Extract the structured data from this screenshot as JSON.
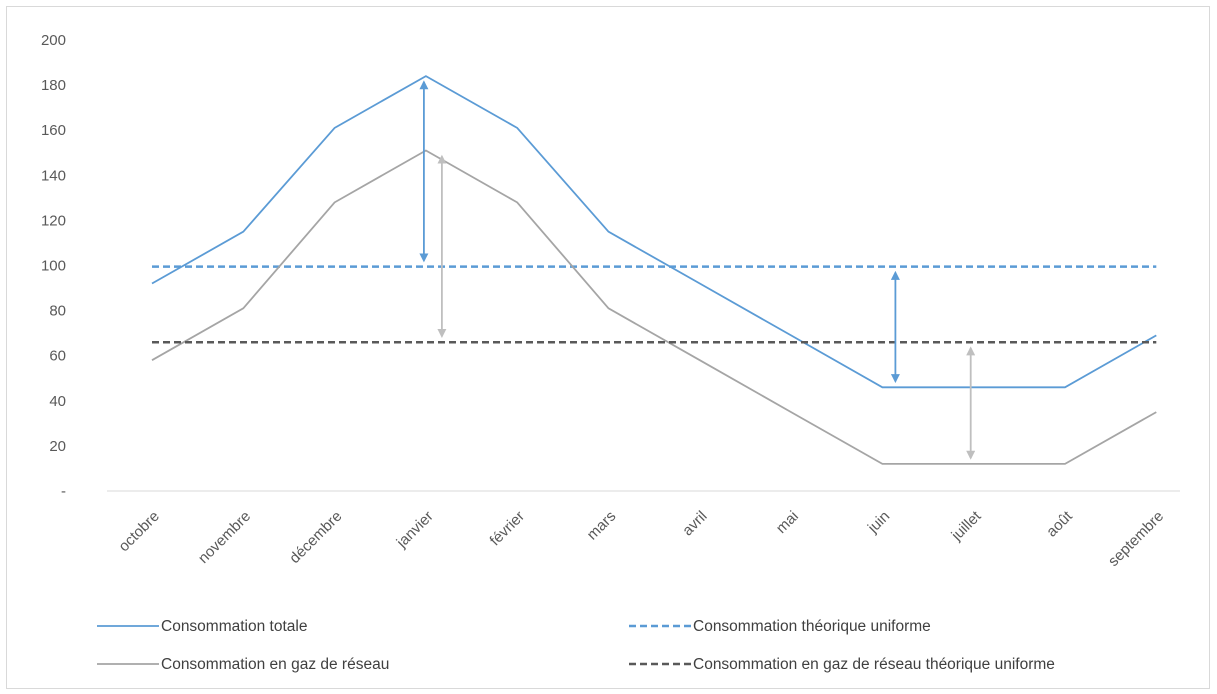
{
  "chart_data": {
    "type": "line",
    "title": "",
    "xlabel": "",
    "ylabel": "",
    "ylim": [
      0,
      200
    ],
    "y_ticks": [
      {
        "value": 0,
        "label": "-"
      },
      {
        "value": 20,
        "label": "20"
      },
      {
        "value": 40,
        "label": "40"
      },
      {
        "value": 60,
        "label": "60"
      },
      {
        "value": 80,
        "label": "80"
      },
      {
        "value": 100,
        "label": "100"
      },
      {
        "value": 120,
        "label": "120"
      },
      {
        "value": 140,
        "label": "140"
      },
      {
        "value": 160,
        "label": "160"
      },
      {
        "value": 180,
        "label": "180"
      },
      {
        "value": 200,
        "label": "200"
      }
    ],
    "categories": [
      "octobre",
      "novembre",
      "décembre",
      "janvier",
      "février",
      "mars",
      "avril",
      "mai",
      "juin",
      "juillet",
      "août",
      "septembre"
    ],
    "grid": false,
    "legend_position": "bottom",
    "series": [
      {
        "name": "Consommation totale",
        "color": "#5b9bd5",
        "dash": "solid",
        "values": [
          92,
          115,
          161,
          184,
          161,
          115,
          92,
          69,
          46,
          46,
          46,
          69
        ]
      },
      {
        "name": "Consommation théorique uniforme",
        "color": "#5b9bd5",
        "dash": "dashed",
        "values": [
          99.5,
          99.5,
          99.5,
          99.5,
          99.5,
          99.5,
          99.5,
          99.5,
          99.5,
          99.5,
          99.5,
          99.5
        ]
      },
      {
        "name": "Consommation en gaz de réseau",
        "color": "#a5a5a5",
        "dash": "solid",
        "values": [
          58,
          81,
          128,
          151,
          128,
          81,
          58,
          35,
          12,
          12,
          12,
          35
        ]
      },
      {
        "name": "Consommation en gaz de réseau théorique uniforme",
        "color": "#595959",
        "dash": "dashed",
        "values": [
          66,
          66,
          66,
          66,
          66,
          66,
          66,
          66,
          66,
          66,
          66,
          66
        ]
      }
    ],
    "annotations": [
      {
        "type": "double-arrow",
        "color": "#5b9bd5",
        "category": "janvier",
        "from": 184,
        "to": 99.5
      },
      {
        "type": "double-arrow",
        "color": "#bfbfbf",
        "category": "janvier",
        "from": 151,
        "to": 66
      },
      {
        "type": "double-arrow",
        "color": "#5b9bd5",
        "category": "juin",
        "from": 99.5,
        "to": 46
      },
      {
        "type": "double-arrow",
        "color": "#bfbfbf",
        "category": "juillet",
        "from": 66,
        "to": 12
      }
    ]
  }
}
